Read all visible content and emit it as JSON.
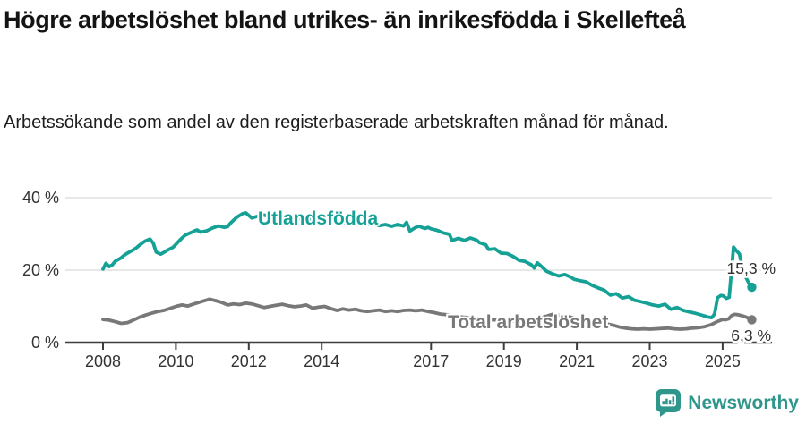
{
  "title": "Högre arbetslöshet bland utrikes- än inrikesfödda i Skellefteå",
  "subtitle": "Arbetssökande som andel av den registerbaserade arbetskraften månad för månad.",
  "branding": {
    "logo_text": "Newsworthy",
    "logo_icon": "bar-chart-speech-bubble-icon",
    "logo_color": "#2f968c"
  },
  "colors": {
    "utlandsfodda": "#15a195",
    "total": "#787878",
    "axis": "#3d3d3d",
    "grid": "#d9d9d9",
    "tick_text": "#333333",
    "end_label_text": "#2f2f2f",
    "background": "#ffffff"
  },
  "chart_data": {
    "type": "line",
    "title": "Högre arbetslöshet bland utrikes- än inrikesfödda i Skellefteå",
    "subtitle": "Arbetssökande som andel av den registerbaserade arbetskraften månad för månad.",
    "xlabel": "",
    "ylabel": "",
    "unit": "%",
    "grid": "horizontal",
    "legend_position": "inline",
    "xlim": [
      2006.95,
      2026.35
    ],
    "ylim": [
      0,
      46.5
    ],
    "x_ticks": [
      2008,
      2010,
      2012,
      2014,
      2017,
      2019,
      2021,
      2023,
      2025
    ],
    "x_tick_labels": [
      "2008",
      "2010",
      "2012",
      "2014",
      "2017",
      "2019",
      "2021",
      "2023",
      "2025"
    ],
    "y_ticks": [
      0,
      20,
      40
    ],
    "y_tick_labels": [
      "0 %",
      "20 %",
      "40 %"
    ],
    "series": [
      {
        "name": "Utlandsfödda",
        "color": "#15a195",
        "end_value": 15.3,
        "end_label": "15,3 %",
        "points": [
          [
            2008.0,
            20.3
          ],
          [
            2008.08,
            21.9
          ],
          [
            2008.17,
            21.0
          ],
          [
            2008.25,
            21.4
          ],
          [
            2008.33,
            22.4
          ],
          [
            2008.5,
            23.4
          ],
          [
            2008.58,
            24.1
          ],
          [
            2008.67,
            24.7
          ],
          [
            2008.83,
            25.6
          ],
          [
            2008.92,
            26.2
          ],
          [
            2009.0,
            26.9
          ],
          [
            2009.08,
            27.5
          ],
          [
            2009.17,
            28.1
          ],
          [
            2009.29,
            28.6
          ],
          [
            2009.38,
            27.4
          ],
          [
            2009.46,
            25.0
          ],
          [
            2009.58,
            24.4
          ],
          [
            2009.67,
            24.9
          ],
          [
            2009.75,
            25.4
          ],
          [
            2009.92,
            26.3
          ],
          [
            2010.0,
            27.1
          ],
          [
            2010.08,
            28.0
          ],
          [
            2010.17,
            28.9
          ],
          [
            2010.25,
            29.6
          ],
          [
            2010.33,
            30.0
          ],
          [
            2010.42,
            30.4
          ],
          [
            2010.5,
            30.8
          ],
          [
            2010.58,
            31.1
          ],
          [
            2010.67,
            30.5
          ],
          [
            2010.83,
            30.8
          ],
          [
            2010.92,
            31.2
          ],
          [
            2011.0,
            31.6
          ],
          [
            2011.08,
            31.9
          ],
          [
            2011.17,
            32.2
          ],
          [
            2011.33,
            31.8
          ],
          [
            2011.42,
            32.0
          ],
          [
            2011.5,
            33.0
          ],
          [
            2011.67,
            34.6
          ],
          [
            2011.83,
            35.6
          ],
          [
            2011.92,
            35.8
          ],
          [
            2012.0,
            35.1
          ],
          [
            2012.08,
            34.4
          ],
          [
            2012.25,
            34.9
          ],
          [
            2012.42,
            35.2
          ],
          [
            2012.58,
            34.6
          ],
          [
            2012.75,
            34.9
          ],
          [
            2012.92,
            34.2
          ],
          [
            2013.08,
            34.6
          ],
          [
            2013.25,
            33.9
          ],
          [
            2013.42,
            34.3
          ],
          [
            2013.58,
            33.7
          ],
          [
            2013.75,
            34.1
          ],
          [
            2013.92,
            33.5
          ],
          [
            2014.08,
            33.9
          ],
          [
            2014.25,
            33.3
          ],
          [
            2014.42,
            33.7
          ],
          [
            2014.58,
            33.1
          ],
          [
            2014.75,
            33.4
          ],
          [
            2014.92,
            32.8
          ],
          [
            2015.08,
            33.2
          ],
          [
            2015.25,
            32.6
          ],
          [
            2015.42,
            32.9
          ],
          [
            2015.58,
            32.3
          ],
          [
            2015.75,
            32.6
          ],
          [
            2015.92,
            32.1
          ],
          [
            2016.08,
            32.6
          ],
          [
            2016.25,
            32.2
          ],
          [
            2016.33,
            33.2
          ],
          [
            2016.42,
            30.8
          ],
          [
            2016.5,
            31.3
          ],
          [
            2016.58,
            31.8
          ],
          [
            2016.67,
            32.1
          ],
          [
            2016.83,
            31.5
          ],
          [
            2016.92,
            31.8
          ],
          [
            2017.0,
            31.4
          ],
          [
            2017.17,
            31.0
          ],
          [
            2017.33,
            30.3
          ],
          [
            2017.5,
            29.9
          ],
          [
            2017.58,
            28.2
          ],
          [
            2017.75,
            28.8
          ],
          [
            2017.92,
            28.2
          ],
          [
            2018.08,
            28.9
          ],
          [
            2018.25,
            28.3
          ],
          [
            2018.33,
            27.6
          ],
          [
            2018.5,
            27.0
          ],
          [
            2018.58,
            25.7
          ],
          [
            2018.75,
            25.9
          ],
          [
            2018.92,
            24.7
          ],
          [
            2019.08,
            24.6
          ],
          [
            2019.25,
            23.8
          ],
          [
            2019.42,
            22.7
          ],
          [
            2019.58,
            22.4
          ],
          [
            2019.75,
            21.5
          ],
          [
            2019.83,
            20.6
          ],
          [
            2019.92,
            22.0
          ],
          [
            2020.0,
            21.3
          ],
          [
            2020.17,
            19.7
          ],
          [
            2020.33,
            19.0
          ],
          [
            2020.5,
            18.4
          ],
          [
            2020.67,
            18.8
          ],
          [
            2020.83,
            18.1
          ],
          [
            2020.92,
            17.5
          ],
          [
            2021.08,
            17.1
          ],
          [
            2021.25,
            16.8
          ],
          [
            2021.42,
            15.8
          ],
          [
            2021.58,
            15.1
          ],
          [
            2021.75,
            14.5
          ],
          [
            2021.92,
            13.1
          ],
          [
            2022.08,
            13.5
          ],
          [
            2022.25,
            12.3
          ],
          [
            2022.42,
            12.7
          ],
          [
            2022.58,
            11.7
          ],
          [
            2022.75,
            11.3
          ],
          [
            2022.92,
            10.9
          ],
          [
            2023.08,
            10.4
          ],
          [
            2023.25,
            10.1
          ],
          [
            2023.42,
            10.6
          ],
          [
            2023.58,
            9.2
          ],
          [
            2023.75,
            9.7
          ],
          [
            2023.92,
            8.9
          ],
          [
            2024.08,
            8.5
          ],
          [
            2024.25,
            8.1
          ],
          [
            2024.42,
            7.6
          ],
          [
            2024.58,
            7.1
          ],
          [
            2024.7,
            6.9
          ],
          [
            2024.78,
            7.9
          ],
          [
            2024.86,
            12.4
          ],
          [
            2024.95,
            13.0
          ],
          [
            2025.02,
            12.9
          ],
          [
            2025.1,
            12.2
          ],
          [
            2025.18,
            12.5
          ],
          [
            2025.24,
            19.5
          ],
          [
            2025.3,
            26.4
          ],
          [
            2025.38,
            25.3
          ],
          [
            2025.46,
            24.5
          ],
          [
            2025.54,
            21.0
          ],
          [
            2025.62,
            18.4
          ],
          [
            2025.71,
            16.6
          ],
          [
            2025.8,
            15.3
          ]
        ]
      },
      {
        "name": "Total arbetslöshet",
        "color": "#787878",
        "end_value": 6.3,
        "end_label": "6,3 %",
        "points": [
          [
            2008.0,
            6.4
          ],
          [
            2008.17,
            6.2
          ],
          [
            2008.33,
            5.8
          ],
          [
            2008.5,
            5.3
          ],
          [
            2008.67,
            5.5
          ],
          [
            2008.83,
            6.2
          ],
          [
            2009.0,
            7.0
          ],
          [
            2009.17,
            7.6
          ],
          [
            2009.33,
            8.1
          ],
          [
            2009.5,
            8.6
          ],
          [
            2009.67,
            8.9
          ],
          [
            2009.83,
            9.4
          ],
          [
            2010.0,
            10.0
          ],
          [
            2010.17,
            10.4
          ],
          [
            2010.33,
            10.1
          ],
          [
            2010.5,
            10.7
          ],
          [
            2010.67,
            11.2
          ],
          [
            2010.83,
            11.7
          ],
          [
            2010.92,
            12.0
          ],
          [
            2011.08,
            11.6
          ],
          [
            2011.25,
            11.1
          ],
          [
            2011.42,
            10.4
          ],
          [
            2011.58,
            10.7
          ],
          [
            2011.75,
            10.5
          ],
          [
            2011.92,
            10.9
          ],
          [
            2012.08,
            10.7
          ],
          [
            2012.25,
            10.2
          ],
          [
            2012.42,
            9.7
          ],
          [
            2012.58,
            10.0
          ],
          [
            2012.75,
            10.3
          ],
          [
            2012.92,
            10.6
          ],
          [
            2013.08,
            10.2
          ],
          [
            2013.25,
            9.9
          ],
          [
            2013.42,
            10.1
          ],
          [
            2013.58,
            10.4
          ],
          [
            2013.75,
            9.5
          ],
          [
            2013.92,
            9.8
          ],
          [
            2014.08,
            10.0
          ],
          [
            2014.25,
            9.4
          ],
          [
            2014.42,
            8.9
          ],
          [
            2014.58,
            9.3
          ],
          [
            2014.75,
            9.0
          ],
          [
            2014.92,
            9.2
          ],
          [
            2015.08,
            8.8
          ],
          [
            2015.25,
            8.6
          ],
          [
            2015.42,
            8.8
          ],
          [
            2015.58,
            9.0
          ],
          [
            2015.75,
            8.6
          ],
          [
            2015.92,
            8.8
          ],
          [
            2016.08,
            8.6
          ],
          [
            2016.25,
            8.9
          ],
          [
            2016.42,
            9.0
          ],
          [
            2016.58,
            8.8
          ],
          [
            2016.75,
            9.0
          ],
          [
            2016.92,
            8.6
          ],
          [
            2017.08,
            8.3
          ],
          [
            2017.25,
            7.9
          ],
          [
            2017.42,
            7.7
          ],
          [
            2017.58,
            7.5
          ],
          [
            2017.75,
            7.2
          ],
          [
            2017.92,
            7.0
          ],
          [
            2018.17,
            6.8
          ],
          [
            2018.42,
            6.5
          ],
          [
            2018.67,
            6.3
          ],
          [
            2018.92,
            6.2
          ],
          [
            2019.17,
            6.1
          ],
          [
            2019.42,
            6.0
          ],
          [
            2019.67,
            6.2
          ],
          [
            2019.92,
            6.5
          ],
          [
            2020.17,
            7.3
          ],
          [
            2020.33,
            7.8
          ],
          [
            2020.5,
            7.6
          ],
          [
            2020.75,
            7.2
          ],
          [
            2021.0,
            6.6
          ],
          [
            2021.25,
            6.2
          ],
          [
            2021.5,
            5.8
          ],
          [
            2021.75,
            5.3
          ],
          [
            2022.0,
            4.8
          ],
          [
            2022.17,
            4.3
          ],
          [
            2022.33,
            4.0
          ],
          [
            2022.5,
            3.8
          ],
          [
            2022.67,
            3.7
          ],
          [
            2022.83,
            3.8
          ],
          [
            2023.0,
            3.7
          ],
          [
            2023.17,
            3.8
          ],
          [
            2023.33,
            3.9
          ],
          [
            2023.5,
            4.0
          ],
          [
            2023.67,
            3.8
          ],
          [
            2023.83,
            3.7
          ],
          [
            2024.0,
            3.8
          ],
          [
            2024.17,
            4.0
          ],
          [
            2024.33,
            4.1
          ],
          [
            2024.5,
            4.4
          ],
          [
            2024.67,
            4.9
          ],
          [
            2024.83,
            5.7
          ],
          [
            2025.0,
            6.4
          ],
          [
            2025.08,
            6.3
          ],
          [
            2025.17,
            6.6
          ],
          [
            2025.25,
            7.5
          ],
          [
            2025.33,
            7.8
          ],
          [
            2025.42,
            7.7
          ],
          [
            2025.5,
            7.5
          ],
          [
            2025.6,
            7.2
          ],
          [
            2025.7,
            6.8
          ],
          [
            2025.8,
            6.3
          ]
        ]
      }
    ]
  }
}
